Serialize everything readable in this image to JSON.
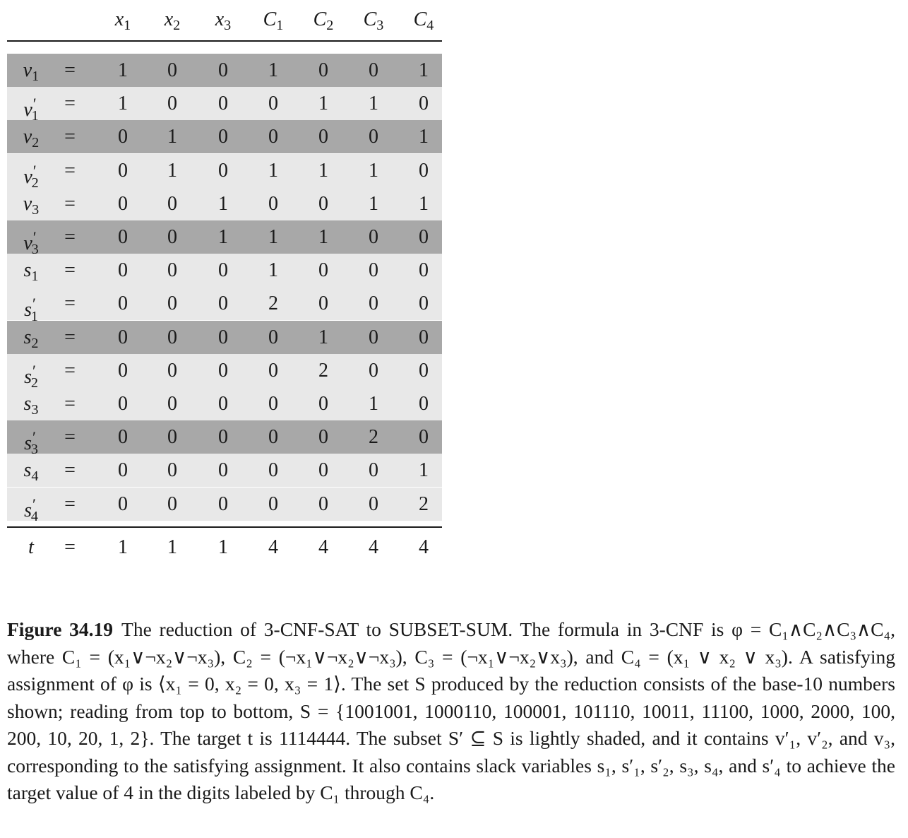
{
  "table": {
    "columns": [
      {
        "base": "x",
        "sub": "1"
      },
      {
        "base": "x",
        "sub": "2"
      },
      {
        "base": "x",
        "sub": "3"
      },
      {
        "base": "C",
        "sub": "1"
      },
      {
        "base": "C",
        "sub": "2"
      },
      {
        "base": "C",
        "sub": "3"
      },
      {
        "base": "C",
        "sub": "4"
      }
    ],
    "eq": "=",
    "rows": [
      {
        "base": "v",
        "sub": "1",
        "prime": false,
        "shade": "dark",
        "digits": [
          "1",
          "0",
          "0",
          "1",
          "0",
          "0",
          "1"
        ]
      },
      {
        "base": "v",
        "sub": "1",
        "prime": true,
        "shade": "light",
        "digits": [
          "1",
          "0",
          "0",
          "0",
          "1",
          "1",
          "0"
        ]
      },
      {
        "base": "v",
        "sub": "2",
        "prime": false,
        "shade": "dark",
        "digits": [
          "0",
          "1",
          "0",
          "0",
          "0",
          "0",
          "1"
        ]
      },
      {
        "base": "v",
        "sub": "2",
        "prime": true,
        "shade": "light",
        "digits": [
          "0",
          "1",
          "0",
          "1",
          "1",
          "1",
          "0"
        ]
      },
      {
        "base": "v",
        "sub": "3",
        "prime": false,
        "shade": "light",
        "digits": [
          "0",
          "0",
          "1",
          "0",
          "0",
          "1",
          "1"
        ]
      },
      {
        "base": "v",
        "sub": "3",
        "prime": true,
        "shade": "dark",
        "digits": [
          "0",
          "0",
          "1",
          "1",
          "1",
          "0",
          "0"
        ]
      },
      {
        "base": "s",
        "sub": "1",
        "prime": false,
        "shade": "light",
        "digits": [
          "0",
          "0",
          "0",
          "1",
          "0",
          "0",
          "0"
        ]
      },
      {
        "base": "s",
        "sub": "1",
        "prime": true,
        "shade": "light",
        "digits": [
          "0",
          "0",
          "0",
          "2",
          "0",
          "0",
          "0"
        ]
      },
      {
        "base": "s",
        "sub": "2",
        "prime": false,
        "shade": "dark",
        "digits": [
          "0",
          "0",
          "0",
          "0",
          "1",
          "0",
          "0"
        ]
      },
      {
        "base": "s",
        "sub": "2",
        "prime": true,
        "shade": "light",
        "digits": [
          "0",
          "0",
          "0",
          "0",
          "2",
          "0",
          "0"
        ]
      },
      {
        "base": "s",
        "sub": "3",
        "prime": false,
        "shade": "light",
        "digits": [
          "0",
          "0",
          "0",
          "0",
          "0",
          "1",
          "0"
        ]
      },
      {
        "base": "s",
        "sub": "3",
        "prime": true,
        "shade": "dark",
        "digits": [
          "0",
          "0",
          "0",
          "0",
          "0",
          "2",
          "0"
        ]
      },
      {
        "base": "s",
        "sub": "4",
        "prime": false,
        "shade": "light",
        "digits": [
          "0",
          "0",
          "0",
          "0",
          "0",
          "0",
          "1"
        ]
      },
      {
        "base": "s",
        "sub": "4",
        "prime": true,
        "shade": "light",
        "digits": [
          "0",
          "0",
          "0",
          "0",
          "0",
          "0",
          "2"
        ]
      }
    ],
    "target": {
      "base": "t",
      "sub": "",
      "prime": false,
      "shade": "white",
      "digits": [
        "1",
        "1",
        "1",
        "4",
        "4",
        "4",
        "4"
      ]
    },
    "colors": {
      "dark": "#a8a8a8",
      "light": "#e8e8e8",
      "rule": "#1a1a1a"
    }
  },
  "caption": {
    "label": "Figure 34.19",
    "text": "The reduction of 3-CNF-SAT to SUBSET-SUM. The formula in 3-CNF is φ = C₁∧C₂∧C₃∧C₄, where C₁ = (x₁∨¬x₂∨¬x₃), C₂ = (¬x₁∨¬x₂∨¬x₃), C₃ = (¬x₁∨¬x₂∨x₃), and C₄ = (x₁ ∨ x₂ ∨ x₃). A satisfying assignment of φ is ⟨x₁ = 0, x₂ = 0, x₃ = 1⟩. The set S produced by the reduction consists of the base-10 numbers shown; reading from top to bottom, S = {1001001, 1000110, 100001, 101110, 10011, 11100, 1000, 2000, 100, 200, 10, 20, 1, 2}. The target t is 1114444. The subset S′ ⊆ S is lightly shaded, and it contains v′₁, v′₂, and v₃, corresponding to the satisfying assignment. It also contains slack variables s₁, s′₁, s′₂, s₃, s₄, and s′₄ to achieve the target value of 4 in the digits labeled by C₁ through C₄."
  }
}
